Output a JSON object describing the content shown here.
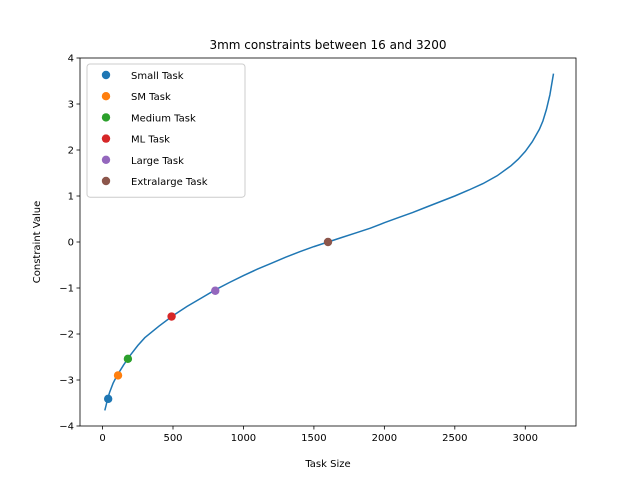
{
  "chart_data": {
    "type": "line",
    "title": "3mm constraints between 16 and 3200",
    "xlabel": "Task Size",
    "ylabel": "Constraint Value",
    "xlim": [
      -160,
      3360
    ],
    "ylim": [
      -4,
      4
    ],
    "xticks": [
      0,
      500,
      1000,
      1500,
      2000,
      2500,
      3000
    ],
    "yticks": [
      -4,
      -3,
      -2,
      -1,
      0,
      1,
      2,
      3,
      4
    ],
    "grid": false,
    "legend_position": "upper-left",
    "curve": {
      "color": "#1f77b4",
      "x": [
        16,
        25,
        35,
        50,
        75,
        100,
        150,
        200,
        250,
        300,
        400,
        500,
        600,
        700,
        800,
        900,
        1000,
        1100,
        1200,
        1300,
        1400,
        1500,
        1600,
        1700,
        1800,
        1900,
        2000,
        2100,
        2200,
        2300,
        2400,
        2500,
        2600,
        2700,
        2800,
        2900,
        2950,
        3000,
        3050,
        3100,
        3125,
        3150,
        3175,
        3200
      ],
      "y": [
        -3.66,
        -3.55,
        -3.42,
        -3.27,
        -3.07,
        -2.92,
        -2.67,
        -2.45,
        -2.25,
        -2.08,
        -1.83,
        -1.6,
        -1.4,
        -1.22,
        -1.04,
        -0.88,
        -0.73,
        -0.59,
        -0.46,
        -0.33,
        -0.21,
        -0.1,
        0.0,
        0.1,
        0.2,
        0.3,
        0.42,
        0.53,
        0.64,
        0.76,
        0.88,
        1.0,
        1.13,
        1.27,
        1.44,
        1.66,
        1.8,
        1.97,
        2.18,
        2.45,
        2.63,
        2.88,
        3.2,
        3.66
      ]
    },
    "series": [
      {
        "name": "Small Task",
        "color": "#1f77b4",
        "x": [
          40
        ],
        "y": [
          -3.41
        ]
      },
      {
        "name": "SM Task",
        "color": "#ff7f0e",
        "x": [
          110
        ],
        "y": [
          -2.9
        ]
      },
      {
        "name": "Medium Task",
        "color": "#2ca02c",
        "x": [
          180
        ],
        "y": [
          -2.54
        ]
      },
      {
        "name": "ML Task",
        "color": "#d62728",
        "x": [
          490
        ],
        "y": [
          -1.62
        ]
      },
      {
        "name": "Large Task",
        "color": "#9467bd",
        "x": [
          800
        ],
        "y": [
          -1.06
        ]
      },
      {
        "name": "Extralarge Task",
        "color": "#8c564b",
        "x": [
          1600
        ],
        "y": [
          0.0
        ]
      }
    ]
  }
}
